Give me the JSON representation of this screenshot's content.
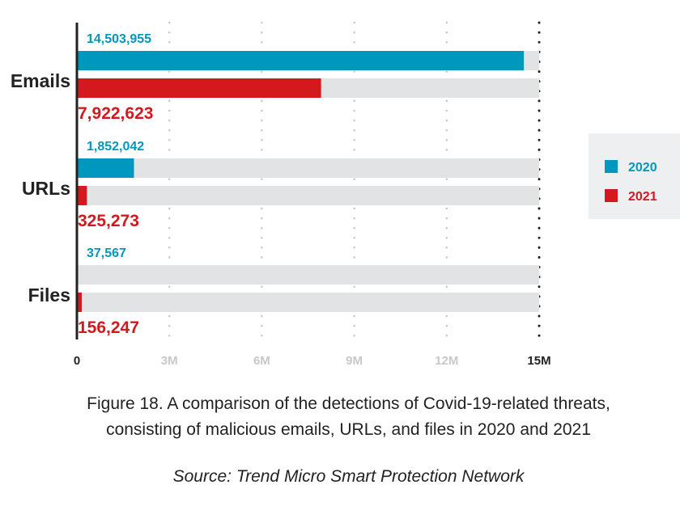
{
  "chart_data": {
    "type": "bar",
    "orientation": "horizontal",
    "categories": [
      "Emails",
      "URLs",
      "Files"
    ],
    "series": [
      {
        "name": "2020",
        "color": "#0097BE",
        "values": [
          14503955,
          1852042,
          37567
        ],
        "labels": [
          "14,503,955",
          "1,852,042",
          "37,567"
        ]
      },
      {
        "name": "2021",
        "color": "#D3191E",
        "values": [
          7922623,
          325273,
          156247
        ],
        "labels": [
          "7,922,623",
          "325,273",
          "156,247"
        ]
      }
    ],
    "xlim": [
      0,
      15000000
    ],
    "xticks": [
      0,
      3000000,
      6000000,
      9000000,
      12000000,
      15000000
    ],
    "xtick_labels": [
      "0",
      "3M",
      "6M",
      "9M",
      "12M",
      "15M"
    ],
    "grid": true,
    "legend": "right",
    "track_color": "#E2E3E5"
  },
  "caption": {
    "line1": "Figure 18. A comparison of the detections of Covid-19-related threats,",
    "line2": "consisting of malicious emails, URLs, and files in 2020 and 2021",
    "source": "Source: Trend Micro Smart Protection Network"
  }
}
